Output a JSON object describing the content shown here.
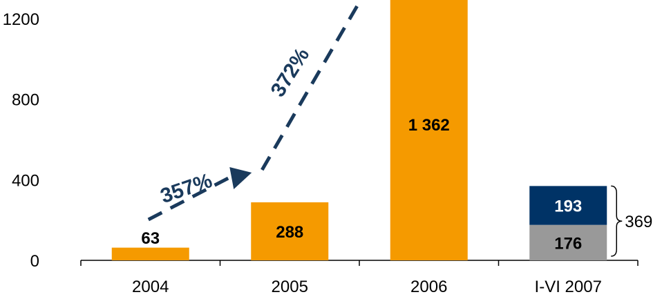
{
  "chart_data": {
    "type": "bar",
    "title": "",
    "xlabel": "",
    "ylabel": "",
    "categories": [
      "2004",
      "2005",
      "2006",
      "I-VI 2007"
    ],
    "series": [
      {
        "values": [
          63,
          288,
          1362,
          176
        ],
        "labels": [
          "63",
          "288",
          "1 362",
          "176"
        ],
        "color": "#f59a00",
        "last_color": "#999999"
      },
      {
        "values": [
          0,
          0,
          0,
          193
        ],
        "labels": [
          "",
          "",
          "",
          "193"
        ],
        "color": "#003366"
      }
    ],
    "ylim": [
      0,
      1200
    ],
    "yticks": [
      0,
      400,
      800,
      1200
    ],
    "ytick_labels": [
      "0",
      "400",
      "800",
      "1200"
    ],
    "total_annotation": {
      "category": "I-VI 2007",
      "value": 369,
      "label": "369"
    },
    "growth_annotations": [
      {
        "from": "2004",
        "to": "2005",
        "label": "357%"
      },
      {
        "from": "2005",
        "to": "2006",
        "label": "372%"
      }
    ],
    "colors": {
      "accent": "#f59a00",
      "navy": "#003366",
      "gray": "#999999",
      "arrow": "#1a3a5c"
    },
    "grid": false,
    "legend": "none"
  }
}
